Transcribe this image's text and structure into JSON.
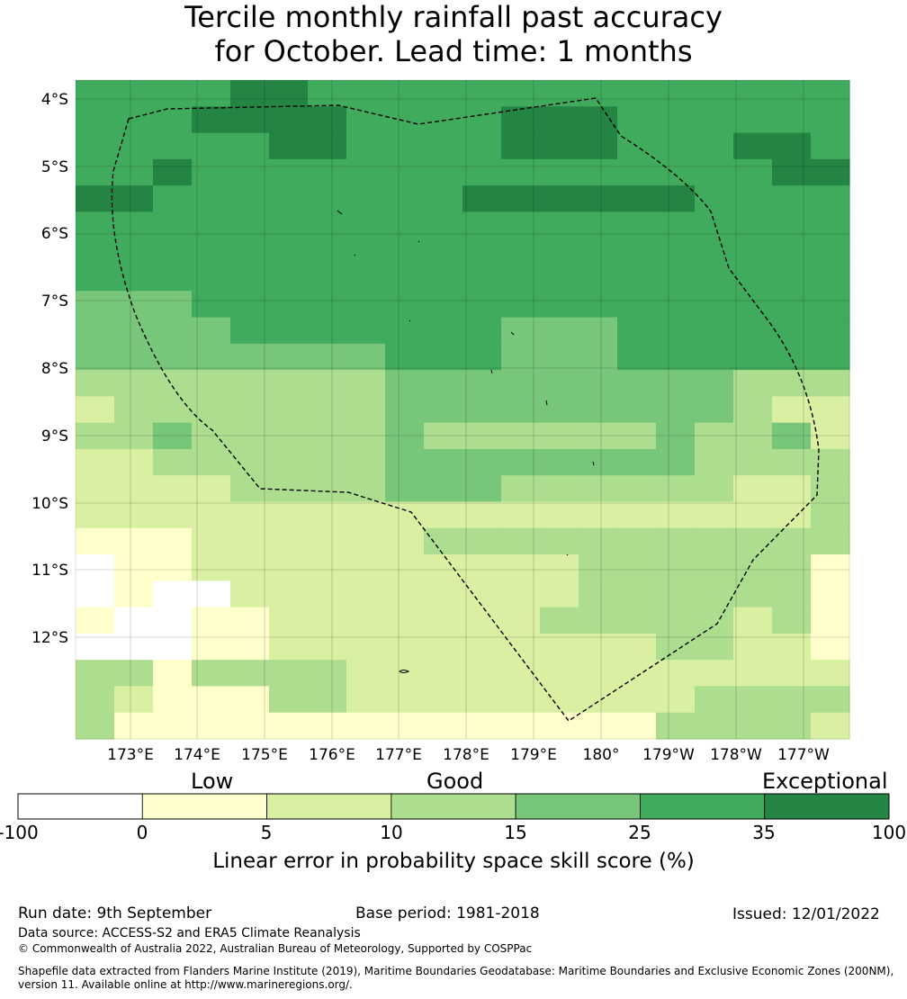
{
  "title_line1": "Tercile monthly rainfall past accuracy",
  "title_line2": "for October. Lead time: 1 months",
  "map": {
    "lat_labels": [
      "4°S",
      "5°S",
      "6°S",
      "7°S",
      "8°S",
      "9°S",
      "10°S",
      "11°S",
      "12°S"
    ],
    "lon_labels": [
      "173°E",
      "174°E",
      "175°E",
      "176°E",
      "177°E",
      "178°E",
      "179°E",
      "180°",
      "179°W",
      "178°W",
      "177°W"
    ],
    "grid_rows": [
      "55556655555555555555",
      "55566665555666555555",
      "55555665555666555665",
      "55655555555555555566",
      "66555555556666665555",
      "55555555555555555555",
      "55555555555555555555",
      "55555555555555555555",
      "44455555555555555555",
      "44445555555444555555",
      "44444444555444555555",
      "33333333444444444333",
      "23333333444444444322",
      "33433333433333343342",
      "22333333444444443333",
      "22223333444333333223",
      "22222222222222222223",
      "11122222233333333333",
      "01122222222223333331",
      "01002222222223333331",
      "10011222222233333231",
      "00011222222222233221",
      "33133332222222222222",
      "32111332222222223333",
      "31111111111111133332"
    ]
  },
  "colorbar": {
    "category_labels": [
      "Low",
      "Good",
      "Exceptional"
    ],
    "tick_labels": [
      "-100",
      "0",
      "5",
      "10",
      "15",
      "25",
      "35",
      "100"
    ],
    "colors": [
      "#ffffff",
      "#ffffcc",
      "#d9f0a3",
      "#addd8e",
      "#78c679",
      "#41ab5d",
      "#238443"
    ],
    "title": "Linear error in probability space skill score (%)"
  },
  "footer": {
    "run_date": "Run date: 9th September",
    "base_period": "Base period: 1981-2018",
    "issued": "Issued: 12/01/2022",
    "data_source": "Data source: ACCESS-S2 and ERA5 Climate Reanalysis",
    "copyright": "© Commonwealth of Australia 2022, Australian Bureau of Meteorology, Supported by COSPPac",
    "shapefile_line1": "Shapefile data extracted from Flanders Marine Institute (2019), Maritime Boundaries Geodatabase: Maritime Boundaries and Exclusive Economic Zones (200NM),",
    "shapefile_line2": "version 11. Available online at http://www.marineregions.org/."
  }
}
